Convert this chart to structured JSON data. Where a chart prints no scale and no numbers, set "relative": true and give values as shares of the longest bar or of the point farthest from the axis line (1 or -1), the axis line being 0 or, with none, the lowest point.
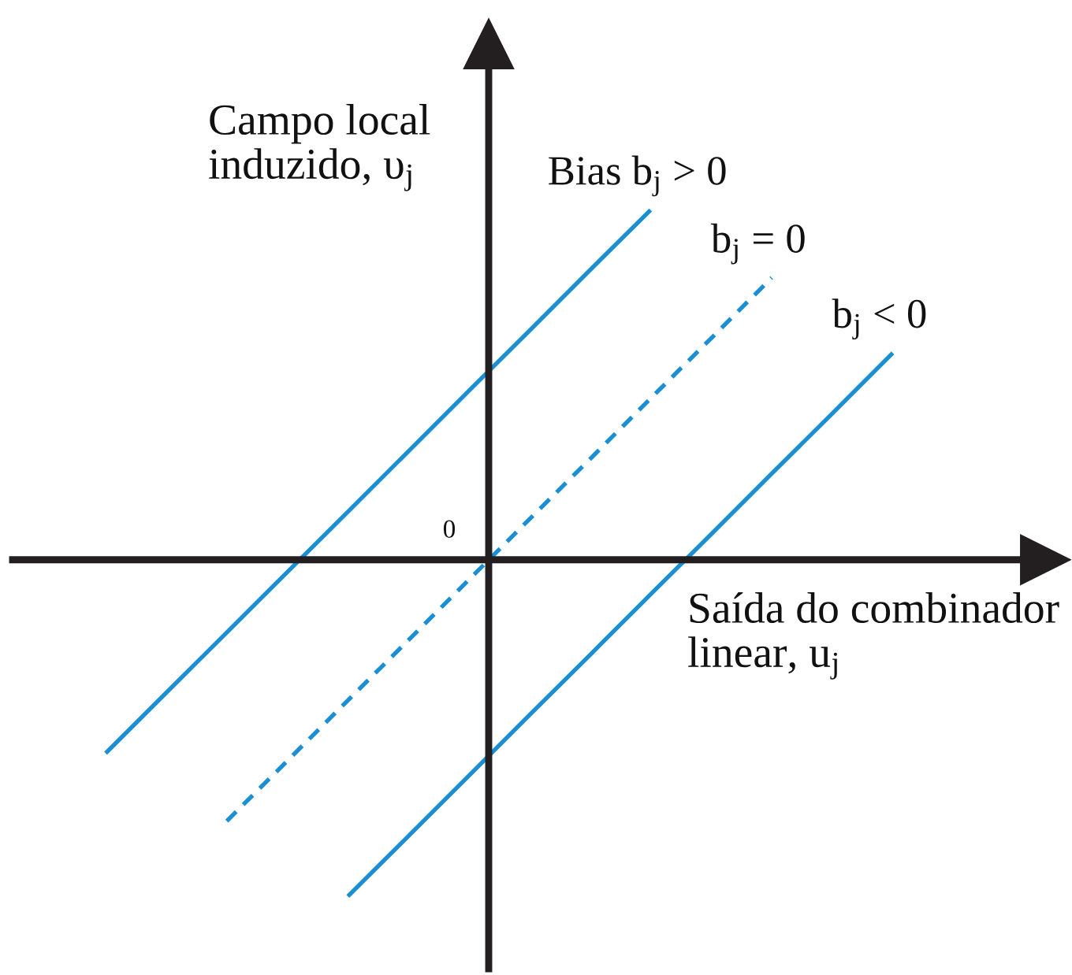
{
  "chart_data": {
    "type": "line",
    "relative": true,
    "xlabel": "Saída do combinador\nlinear, u$_{j}$",
    "ylabel": "Campo local\ninduzido, υ$_{j}$",
    "categories": [
      null,
      null,
      null,
      null,
      null,
      null,
      null,
      null,
      null,
      null,
      null,
      null,
      null,
      null
    ],
    "series": [
      {
        "name": "Bias b$_{j}$ > 0",
        "color": "#1a8fd4",
        "values": [
          -0.553,
          -0.38,
          -0.208,
          -0.035,
          0.137,
          0.31,
          0.483,
          0.655,
          0.828,
          1.0,
          null,
          null,
          null,
          null
        ]
      },
      {
        "name": "b$_{j}$ = 0",
        "color": "#1a8fd4",
        "line_style": "dashed",
        "values": [
          null,
          null,
          -0.747,
          -0.575,
          -0.402,
          -0.23,
          -0.057,
          0.116,
          0.288,
          0.461,
          0.633,
          0.806,
          null,
          null
        ]
      },
      {
        "name": "b$_{j}$ < 0",
        "color": "#1a8fd4",
        "values": [
          null,
          null,
          null,
          null,
          -0.962,
          -0.79,
          -0.617,
          -0.444,
          -0.272,
          -0.099,
          0.073,
          0.246,
          0.418,
          0.591
        ]
      }
    ],
    "annotations": [
      "0"
    ],
    "line_style": "solid",
    "legend": false,
    "tick_labels": false
  }
}
